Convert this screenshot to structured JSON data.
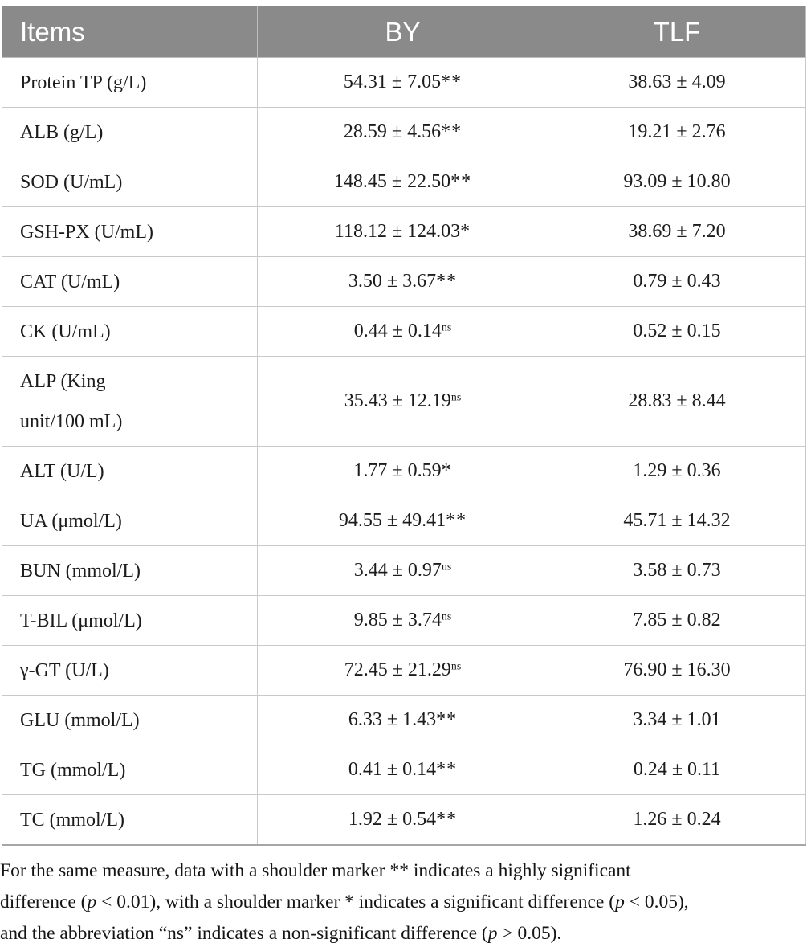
{
  "table": {
    "header": {
      "items": "Items",
      "by": "BY",
      "tlf": "TLF"
    },
    "rows": [
      {
        "item": "Protein TP (g/L)",
        "by": "54.31 ± 7.05",
        "by_marker": "**",
        "tlf": "38.63 ± 4.09"
      },
      {
        "item": "ALB (g/L)",
        "by": "28.59 ± 4.56",
        "by_marker": "**",
        "tlf": "19.21 ± 2.76"
      },
      {
        "item": "SOD (U/mL)",
        "by": "148.45 ± 22.50",
        "by_marker": "**",
        "tlf": "93.09 ± 10.80"
      },
      {
        "item": "GSH-PX (U/mL)",
        "by": "118.12 ± 124.03",
        "by_marker": "*",
        "tlf": "38.69 ± 7.20"
      },
      {
        "item": "CAT (U/mL)",
        "by": "3.50 ± 3.67",
        "by_marker": "**",
        "tlf": "0.79 ± 0.43"
      },
      {
        "item": "CK (U/mL)",
        "by": "0.44 ± 0.14",
        "by_marker": "ns",
        "tlf": "0.52 ± 0.15"
      },
      {
        "item": "ALP (King\nunit/100 mL)",
        "by": "35.43 ± 12.19",
        "by_marker": "ns",
        "tlf": "28.83 ± 8.44"
      },
      {
        "item": "ALT (U/L)",
        "by": "1.77 ± 0.59",
        "by_marker": "*",
        "tlf": "1.29 ± 0.36"
      },
      {
        "item": "UA (μmol/L)",
        "by": "94.55 ± 49.41",
        "by_marker": "**",
        "tlf": "45.71 ± 14.32"
      },
      {
        "item": "BUN (mmol/L)",
        "by": "3.44 ± 0.97",
        "by_marker": "ns",
        "tlf": "3.58 ± 0.73"
      },
      {
        "item": "T-BIL (μmol/L)",
        "by": "9.85 ± 3.74",
        "by_marker": "ns",
        "tlf": "7.85 ± 0.82"
      },
      {
        "item": "γ-GT (U/L)",
        "by": "72.45 ± 21.29",
        "by_marker": "ns",
        "tlf": "76.90 ± 16.30"
      },
      {
        "item": "GLU (mmol/L)",
        "by": "6.33 ± 1.43",
        "by_marker": "**",
        "tlf": "3.34 ± 1.01"
      },
      {
        "item": "TG (mmol/L)",
        "by": "0.41 ± 0.14",
        "by_marker": "**",
        "tlf": "0.24 ± 0.11"
      },
      {
        "item": "TC (mmol/L)",
        "by": "1.92 ± 0.54",
        "by_marker": "**",
        "tlf": "1.26 ± 0.24"
      }
    ]
  },
  "footnote": {
    "lines": [
      [
        {
          "t": "For the same measure, data with a shoulder marker ** indicates a highly significant"
        }
      ],
      [
        {
          "t": "difference ("
        },
        {
          "t": "p",
          "i": true
        },
        {
          "t": " < 0.01), with a shoulder marker * indicates a significant difference ("
        },
        {
          "t": "p",
          "i": true
        },
        {
          "t": " < 0.05),"
        }
      ],
      [
        {
          "t": "and the abbreviation “ns” indicates a non-significant difference ("
        },
        {
          "t": "p",
          "i": true
        },
        {
          "t": " > 0.05)."
        }
      ]
    ]
  },
  "colors": {
    "header_bg": "#8a8a8a",
    "header_text": "#ffffff",
    "grid_border": "#c9c9c9",
    "bottom_border": "#a6a6a6",
    "body_text": "#1c1c1c"
  }
}
